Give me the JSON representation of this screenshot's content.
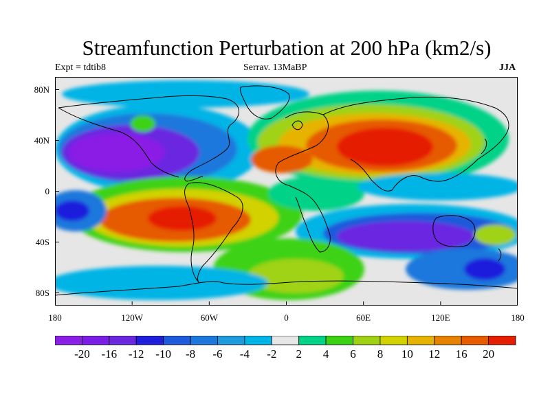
{
  "map": {
    "title": "Streamfunction Perturbation at 200 hPa (km2/s)",
    "left_subtitle": "Expt = tdtib8",
    "center_subtitle": "Serrav.   13MaBP",
    "right_subtitle": "JJA",
    "lat_labels": [
      "80N",
      "40N",
      "0",
      "40S",
      "80S"
    ],
    "lat_values": [
      80,
      40,
      0,
      -40,
      -80
    ],
    "lon_labels": [
      "180",
      "120W",
      "60W",
      "0",
      "60E",
      "120E",
      "180"
    ],
    "lon_values": [
      -180,
      -120,
      -60,
      0,
      60,
      120,
      180
    ],
    "lat_range": [
      -90,
      90
    ],
    "lon_range": [
      -180,
      180
    ],
    "colorbar": {
      "colors": [
        "#8a1ee6",
        "#7a1ee6",
        "#6a28e0",
        "#1e1edc",
        "#1e5adc",
        "#1e78dc",
        "#1e9bdc",
        "#00b4e6",
        "#e6e6e6",
        "#00d287",
        "#3cd214",
        "#a0d214",
        "#d2d200",
        "#e6b400",
        "#e68200",
        "#e65a00",
        "#e61e00"
      ],
      "labels": [
        "-20",
        "-16",
        "-12",
        "-10",
        "-8",
        "-6",
        "-4",
        "-2",
        "2",
        "4",
        "6",
        "8",
        "10",
        "12",
        "16",
        "20"
      ]
    }
  }
}
